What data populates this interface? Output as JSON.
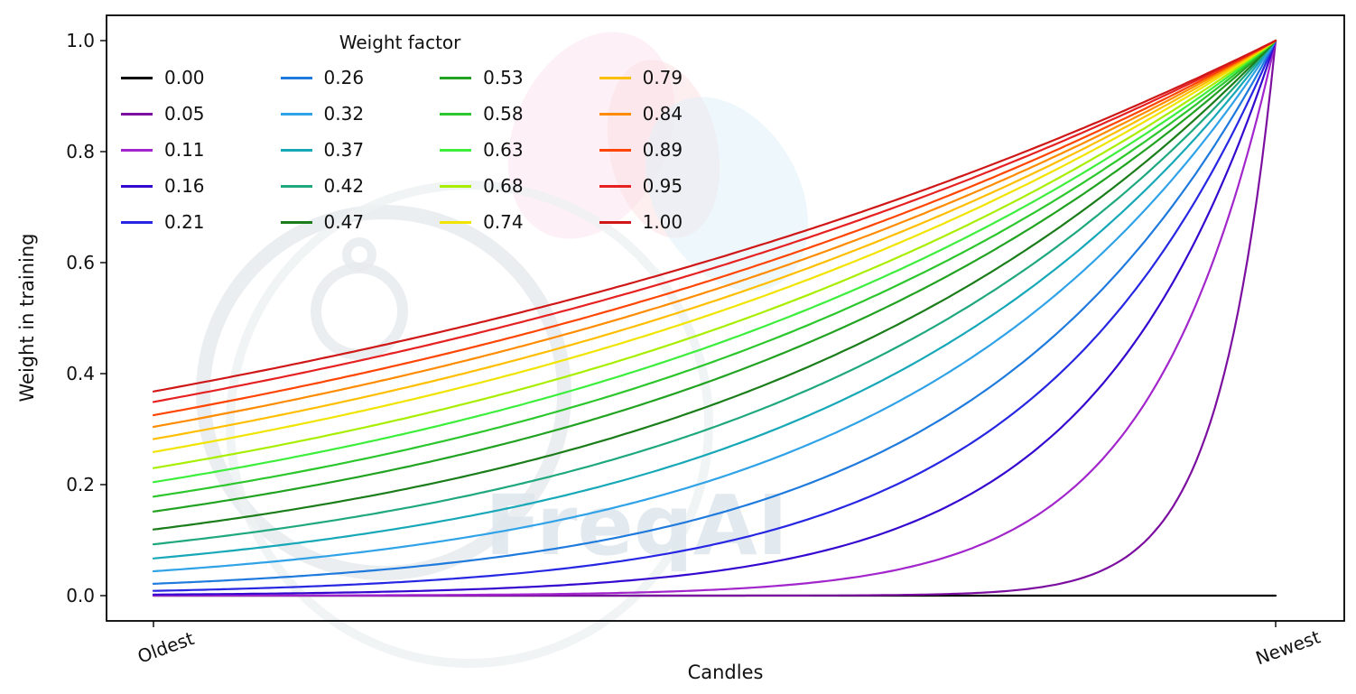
{
  "figure": {
    "background": "#ffffff"
  },
  "watermark": {
    "text": "FreqAI"
  },
  "chart_data": {
    "type": "line",
    "title": "",
    "xlabel": "Candles",
    "ylabel": "Weight in training",
    "x_tick_labels": [
      "Oldest",
      "Newest"
    ],
    "y_ticks": [
      0.0,
      0.2,
      0.4,
      0.6,
      0.8,
      1.0
    ],
    "y_tick_labels": [
      "0.0",
      "0.2",
      "0.4",
      "0.6",
      "0.8",
      "1.0"
    ],
    "ylim": [
      -0.05,
      1.05
    ],
    "grid": false,
    "legend": {
      "title": "Weight factor",
      "columns": 4,
      "rows": 5,
      "position": "upper left",
      "fill_order": "column-major"
    },
    "formula": "weight(t) = exp(-(1 - t) / weight_factor), t from 0 (Oldest) to 1 (Newest); weight_factor = 0 gives flat 0",
    "sample_t": [
      0,
      0.25,
      0.5,
      0.75,
      1
    ],
    "series": [
      {
        "label": "0.00",
        "weight_factor": 0.0,
        "color": "#000000",
        "values": [
          0.0,
          0.0,
          0.0,
          0.0,
          0.0
        ]
      },
      {
        "label": "0.05",
        "weight_factor": 0.05,
        "color": "#7c0fa0",
        "values": [
          0.0,
          0.0,
          0.0,
          0.007,
          1.0
        ]
      },
      {
        "label": "0.11",
        "weight_factor": 0.11,
        "color": "#a226cc",
        "values": [
          0.0,
          0.001,
          0.011,
          0.103,
          1.0
        ]
      },
      {
        "label": "0.16",
        "weight_factor": 0.16,
        "color": "#3508cf",
        "values": [
          0.002,
          0.009,
          0.044,
          0.21,
          1.0
        ]
      },
      {
        "label": "0.21",
        "weight_factor": 0.21,
        "color": "#2727e3",
        "values": [
          0.009,
          0.028,
          0.092,
          0.304,
          1.0
        ]
      },
      {
        "label": "0.26",
        "weight_factor": 0.26,
        "color": "#1f7ade",
        "values": [
          0.021,
          0.056,
          0.146,
          0.382,
          1.0
        ]
      },
      {
        "label": "0.32",
        "weight_factor": 0.32,
        "color": "#30a2e8",
        "values": [
          0.044,
          0.096,
          0.21,
          0.458,
          1.0
        ]
      },
      {
        "label": "0.37",
        "weight_factor": 0.37,
        "color": "#17a8b8",
        "values": [
          0.067,
          0.132,
          0.259,
          0.509,
          1.0
        ]
      },
      {
        "label": "0.42",
        "weight_factor": 0.42,
        "color": "#1fa87e",
        "values": [
          0.092,
          0.168,
          0.304,
          0.551,
          1.0
        ]
      },
      {
        "label": "0.47",
        "weight_factor": 0.47,
        "color": "#1a7d1a",
        "values": [
          0.119,
          0.203,
          0.345,
          0.587,
          1.0
        ]
      },
      {
        "label": "0.53",
        "weight_factor": 0.53,
        "color": "#21a321",
        "values": [
          0.152,
          0.243,
          0.389,
          0.624,
          1.0
        ]
      },
      {
        "label": "0.58",
        "weight_factor": 0.58,
        "color": "#2cc72c",
        "values": [
          0.178,
          0.274,
          0.422,
          0.65,
          1.0
        ]
      },
      {
        "label": "0.63",
        "weight_factor": 0.63,
        "color": "#3dee3d",
        "values": [
          0.205,
          0.304,
          0.452,
          0.672,
          1.0
        ]
      },
      {
        "label": "0.68",
        "weight_factor": 0.68,
        "color": "#a8ee00",
        "values": [
          0.23,
          0.332,
          0.479,
          0.692,
          1.0
        ]
      },
      {
        "label": "0.74",
        "weight_factor": 0.74,
        "color": "#f0e400",
        "values": [
          0.259,
          0.363,
          0.509,
          0.713,
          1.0
        ]
      },
      {
        "label": "0.79",
        "weight_factor": 0.79,
        "color": "#ffbe00",
        "values": [
          0.282,
          0.387,
          0.531,
          0.729,
          1.0
        ]
      },
      {
        "label": "0.84",
        "weight_factor": 0.84,
        "color": "#ff8c00",
        "values": [
          0.304,
          0.409,
          0.551,
          0.742,
          1.0
        ]
      },
      {
        "label": "0.89",
        "weight_factor": 0.89,
        "color": "#ff4500",
        "values": [
          0.325,
          0.43,
          0.57,
          0.755,
          1.0
        ]
      },
      {
        "label": "0.95",
        "weight_factor": 0.95,
        "color": "#e62121",
        "values": [
          0.349,
          0.454,
          0.591,
          0.769,
          1.0
        ]
      },
      {
        "label": "1.00",
        "weight_factor": 1.0,
        "color": "#cf1717",
        "values": [
          0.368,
          0.472,
          0.607,
          0.779,
          1.0
        ]
      }
    ]
  }
}
